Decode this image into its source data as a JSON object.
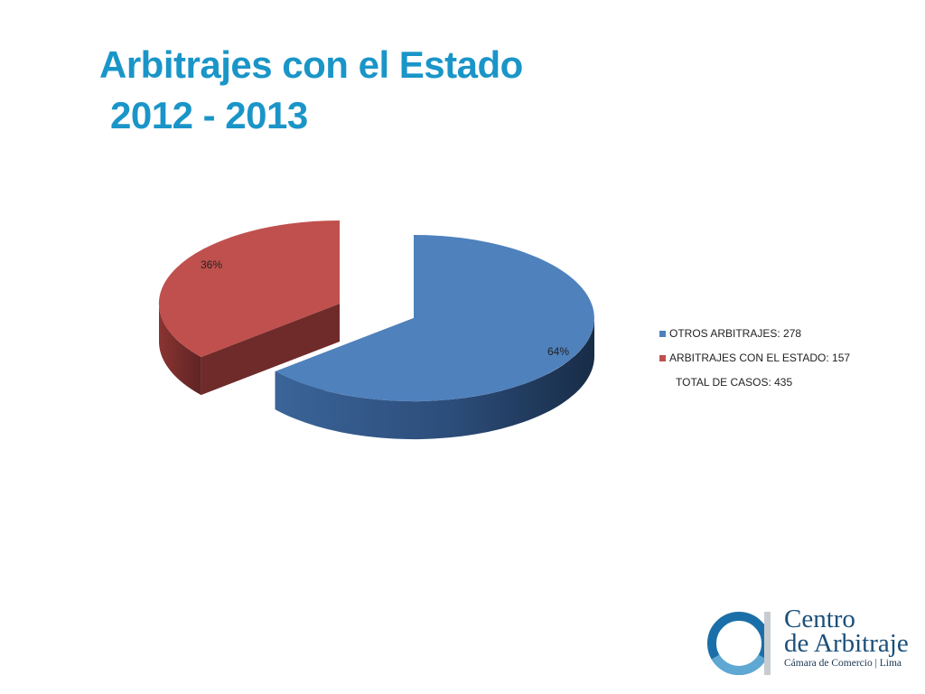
{
  "slide": {
    "title_line1": "Arbitrajes con el Estado",
    "title_line2": "2012 - 2013"
  },
  "chart_data": {
    "type": "pie",
    "style": "3d-exploded",
    "slices": [
      {
        "label": "OTROS ARBITRAJES: 278",
        "value": 278,
        "percent_label": "64%",
        "color": "#4f81bd"
      },
      {
        "label": "ARBITRAJES CON EL ESTADO: 157",
        "value": 157,
        "percent_label": "36%",
        "color": "#c0504d"
      }
    ],
    "legend_note": "TOTAL DE CASOS: 435",
    "legend_position": "right"
  },
  "logo": {
    "line1": "Centro",
    "line2": "de Arbitraje",
    "line3": "Cámara de Comercio | Lima"
  }
}
